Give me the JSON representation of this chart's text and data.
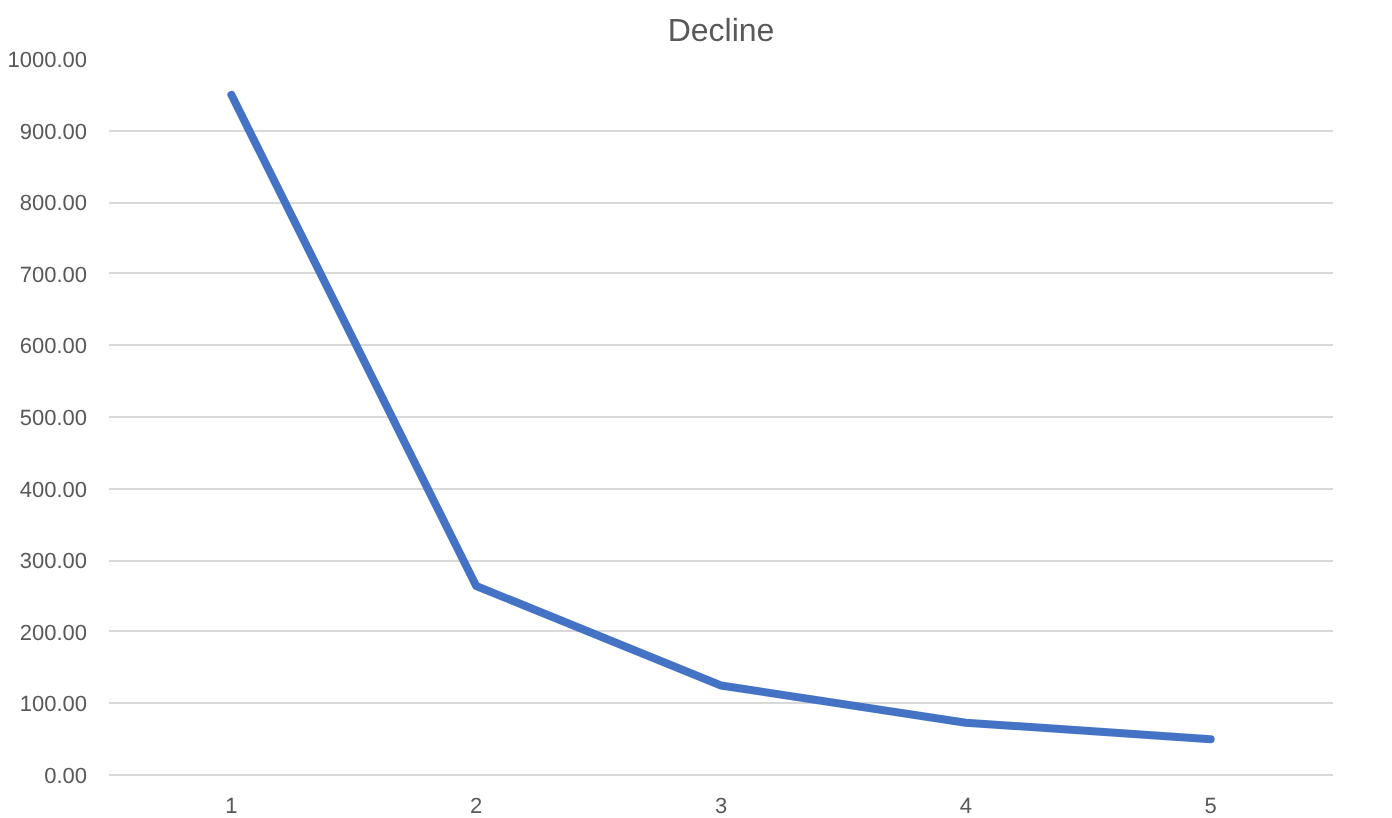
{
  "chart_data": {
    "type": "line",
    "title": "Decline",
    "categories": [
      "1",
      "2",
      "3",
      "4",
      "5"
    ],
    "series": [
      {
        "color": "#4472c4",
        "values": [
          950,
          264,
          125,
          73,
          50
        ]
      }
    ],
    "ylim": [
      0,
      1000
    ],
    "yticks": [
      {
        "value": 0,
        "label": "0.00"
      },
      {
        "value": 100,
        "label": "100.00"
      },
      {
        "value": 200,
        "label": "200.00"
      },
      {
        "value": 300,
        "label": "300.00"
      },
      {
        "value": 400,
        "label": "400.00"
      },
      {
        "value": 500,
        "label": "500.00"
      },
      {
        "value": 600,
        "label": "600.00"
      },
      {
        "value": 700,
        "label": "700.00"
      },
      {
        "value": 800,
        "label": "800.00"
      },
      {
        "value": 900,
        "label": "900.00"
      },
      {
        "value": 1000,
        "label": "1000.00"
      }
    ],
    "grid": "y",
    "line_style": "solid"
  }
}
